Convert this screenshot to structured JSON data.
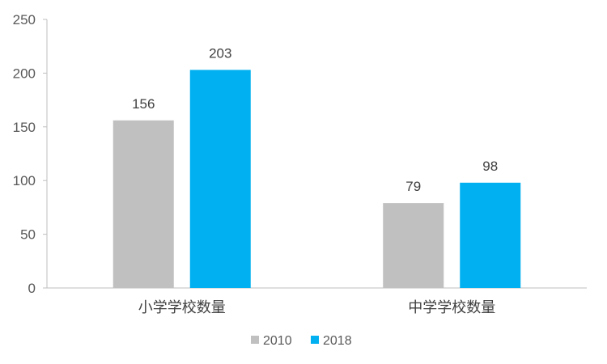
{
  "chart_data": {
    "type": "bar",
    "categories": [
      "小学学校数量",
      "中学学校数量"
    ],
    "series": [
      {
        "name": "2010",
        "values": [
          156,
          79
        ],
        "color": "#C0C0C0"
      },
      {
        "name": "2018",
        "values": [
          203,
          98
        ],
        "color": "#00B0F0"
      }
    ],
    "title": "",
    "xlabel": "",
    "ylabel": "",
    "ylim": [
      0,
      250
    ],
    "yticks": [
      0,
      50,
      100,
      150,
      200,
      250
    ],
    "grid": false,
    "legend_position": "bottom",
    "data_labels": true
  }
}
